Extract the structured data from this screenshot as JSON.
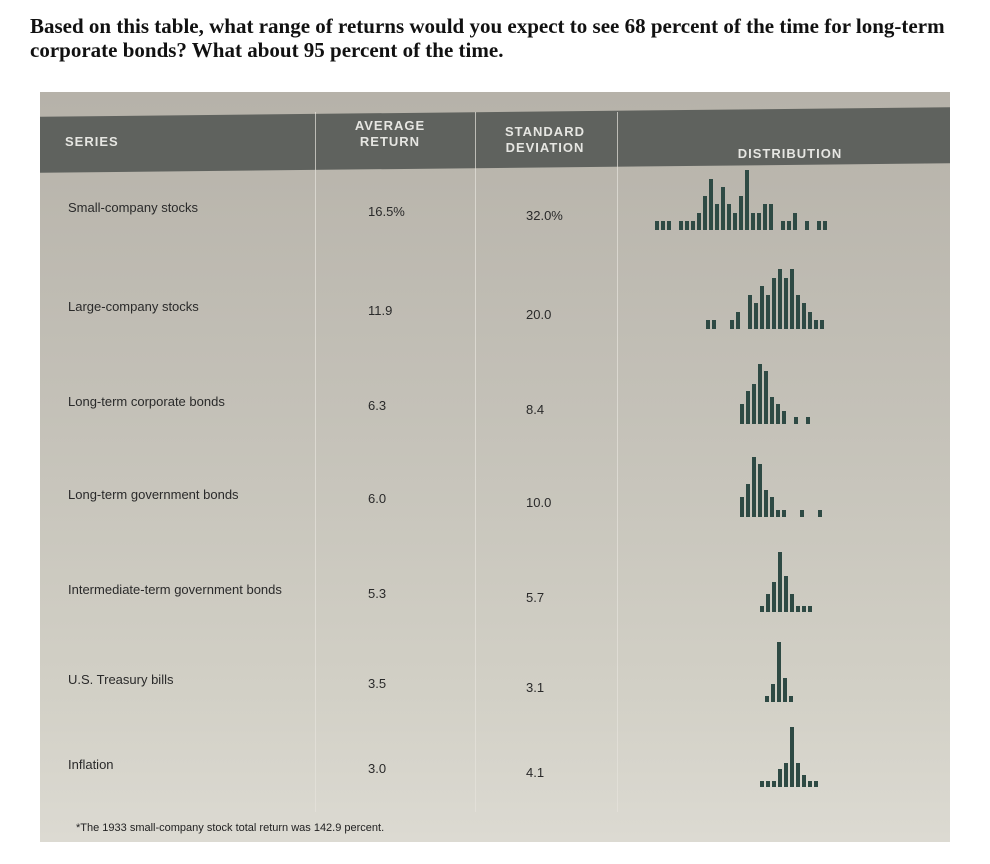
{
  "question": "Based on this table, what range of returns would you expect to see 68 percent of the time for long-term corporate bonds? What about 95 percent of the time.",
  "table": {
    "headers": [
      "SERIES",
      "AVERAGE RETURN",
      "STANDARD DEVIATION",
      "DISTRIBUTION"
    ],
    "rows": [
      {
        "series": "Small-company stocks",
        "avg": "16.5%",
        "sd": "32.0%",
        "dist": [
          1,
          1,
          1,
          0,
          1,
          1,
          1,
          2,
          4,
          6,
          3,
          5,
          3,
          2,
          4,
          7,
          2,
          2,
          3,
          3,
          0,
          1,
          1,
          2,
          0,
          1,
          0,
          1,
          1
        ]
      },
      {
        "series": "Large-company stocks",
        "avg": "11.9",
        "sd": "20.0",
        "dist": [
          0,
          1,
          1,
          0,
          0,
          1,
          2,
          0,
          4,
          3,
          5,
          4,
          6,
          7,
          6,
          7,
          4,
          3,
          2,
          1,
          1
        ]
      },
      {
        "series": "Long-term corporate bonds",
        "avg": "6.3",
        "sd": "8.4",
        "dist": [
          3,
          5,
          6,
          9,
          8,
          4,
          3,
          2,
          0,
          1,
          0,
          1
        ]
      },
      {
        "series": "Long-term government bonds",
        "avg": "6.0",
        "sd": "10.0",
        "dist": [
          3,
          5,
          9,
          8,
          4,
          3,
          1,
          1,
          0,
          0,
          1,
          0,
          0,
          1
        ]
      },
      {
        "series": "Intermediate-term government bonds",
        "avg": "5.3",
        "sd": "5.7",
        "dist": [
          1,
          3,
          5,
          10,
          6,
          3,
          1,
          1,
          1
        ]
      },
      {
        "series": "U.S. Treasury bills",
        "avg": "3.5",
        "sd": "3.1",
        "dist": [
          1,
          3,
          10,
          4,
          1
        ]
      },
      {
        "series": "Inflation",
        "avg": "3.0",
        "sd": "4.1",
        "dist": [
          1,
          1,
          1,
          3,
          4,
          10,
          4,
          2,
          1,
          1
        ]
      }
    ],
    "footnote": "*The 1933 small-company stock total return was 142.9 percent."
  }
}
